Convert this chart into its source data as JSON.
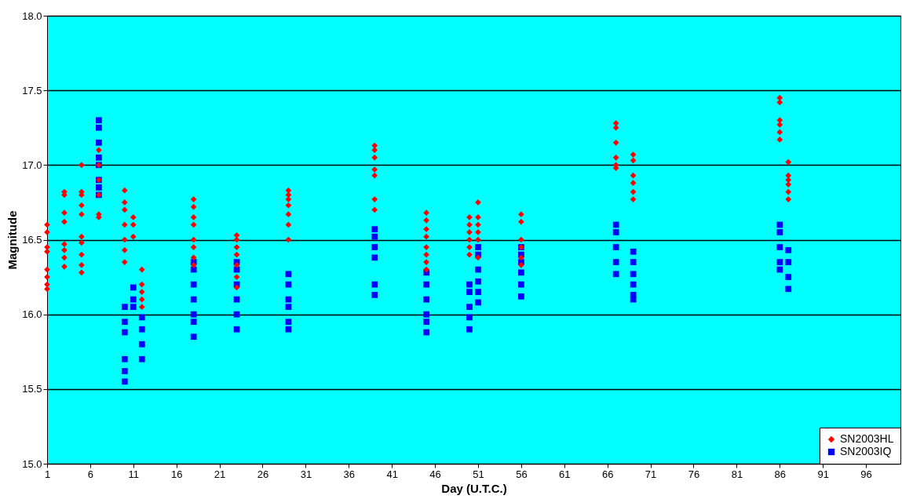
{
  "chart_data": {
    "type": "scatter",
    "xlabel": "Day (U.T.C.)",
    "ylabel": "Magnitude",
    "xlim": [
      1,
      100
    ],
    "xticks": [
      1,
      6,
      11,
      16,
      21,
      26,
      31,
      36,
      41,
      46,
      51,
      56,
      61,
      66,
      71,
      76,
      81,
      86,
      91,
      96
    ],
    "ylim": [
      15,
      18
    ],
    "yticks": [
      {
        "value": 15,
        "label": "15.0"
      },
      {
        "value": 15.5,
        "label": "15.5"
      },
      {
        "value": 16,
        "label": "16.0"
      },
      {
        "value": 16.5,
        "label": "16.5"
      },
      {
        "value": 17,
        "label": "17.0"
      },
      {
        "value": 17.5,
        "label": "17.5"
      },
      {
        "value": 18,
        "label": "18.0"
      }
    ],
    "grid": "y",
    "legend": "bottom right",
    "series": [
      {
        "name": "SN2003HL",
        "color": "#ff0000",
        "marker": "diamond",
        "x": [
          1,
          1,
          1,
          1,
          1,
          1,
          1,
          1,
          3,
          3,
          3,
          3,
          3,
          3,
          3,
          3,
          5,
          5,
          5,
          5,
          5,
          5,
          5,
          5,
          5,
          5,
          7,
          7,
          7,
          7,
          7,
          7,
          10,
          10,
          10,
          10,
          10,
          10,
          10,
          11,
          11,
          11,
          12,
          12,
          12,
          12,
          12,
          18,
          18,
          18,
          18,
          18,
          18,
          18,
          18,
          23,
          23,
          23,
          23,
          23,
          23,
          23,
          29,
          29,
          29,
          29,
          29,
          29,
          29,
          39,
          39,
          39,
          39,
          39,
          39,
          39,
          45,
          45,
          45,
          45,
          45,
          45,
          45,
          45,
          50,
          50,
          50,
          50,
          50,
          50,
          51,
          51,
          51,
          51,
          51,
          51,
          56,
          56,
          56,
          56,
          56,
          56,
          67,
          67,
          67,
          67,
          67,
          67,
          69,
          69,
          69,
          69,
          69,
          69,
          86,
          86,
          86,
          86,
          86,
          86,
          87,
          87,
          87,
          87,
          87,
          87
        ],
        "values": [
          16.6,
          16.55,
          16.45,
          16.42,
          16.3,
          16.25,
          16.2,
          16.17,
          16.82,
          16.8,
          16.68,
          16.62,
          16.47,
          16.43,
          16.38,
          16.32,
          17.0,
          16.82,
          16.8,
          16.73,
          16.67,
          16.52,
          16.48,
          16.4,
          16.33,
          16.28,
          17.1,
          17.0,
          16.9,
          16.8,
          16.67,
          16.65,
          16.83,
          16.75,
          16.7,
          16.6,
          16.5,
          16.43,
          16.35,
          16.65,
          16.6,
          16.52,
          16.3,
          16.2,
          16.15,
          16.1,
          16.05,
          16.77,
          16.72,
          16.65,
          16.6,
          16.5,
          16.45,
          16.38,
          16.33,
          16.53,
          16.5,
          16.45,
          16.4,
          16.33,
          16.25,
          16.18,
          16.83,
          16.8,
          16.77,
          16.73,
          16.67,
          16.6,
          16.5,
          17.13,
          17.1,
          17.05,
          16.97,
          16.93,
          16.77,
          16.7,
          16.68,
          16.63,
          16.57,
          16.52,
          16.45,
          16.4,
          16.35,
          16.3,
          16.65,
          16.6,
          16.55,
          16.5,
          16.45,
          16.4,
          16.75,
          16.65,
          16.6,
          16.55,
          16.5,
          16.38,
          16.67,
          16.62,
          16.5,
          16.45,
          16.38,
          16.33,
          17.28,
          17.25,
          17.15,
          17.05,
          17.0,
          16.98,
          17.07,
          17.03,
          16.93,
          16.88,
          16.82,
          16.77,
          17.45,
          17.42,
          17.3,
          17.27,
          17.22,
          17.17,
          17.02,
          16.93,
          16.9,
          16.87,
          16.82,
          16.77
        ]
      },
      {
        "name": "SN2003IQ",
        "color": "#0000ff",
        "marker": "square",
        "x": [
          7,
          7,
          7,
          7,
          7,
          7,
          7,
          7,
          10,
          10,
          10,
          10,
          10,
          10,
          11,
          11,
          11,
          12,
          12,
          12,
          12,
          18,
          18,
          18,
          18,
          18,
          18,
          18,
          23,
          23,
          23,
          23,
          23,
          23,
          29,
          29,
          29,
          29,
          29,
          29,
          39,
          39,
          39,
          39,
          39,
          39,
          45,
          45,
          45,
          45,
          45,
          45,
          50,
          50,
          50,
          50,
          50,
          51,
          51,
          51,
          51,
          51,
          51,
          56,
          56,
          56,
          56,
          56,
          56,
          67,
          67,
          67,
          67,
          67,
          69,
          69,
          69,
          69,
          69,
          69,
          86,
          86,
          86,
          86,
          86,
          87,
          87,
          87,
          87
        ],
        "values": [
          17.3,
          17.25,
          17.15,
          17.05,
          17.0,
          16.9,
          16.85,
          16.8,
          16.05,
          15.95,
          15.88,
          15.7,
          15.62,
          15.55,
          16.18,
          16.1,
          16.05,
          15.98,
          15.9,
          15.8,
          15.7,
          16.35,
          16.3,
          16.2,
          16.1,
          16.0,
          15.95,
          15.85,
          16.35,
          16.3,
          16.2,
          16.1,
          16.0,
          15.9,
          16.27,
          16.2,
          16.1,
          16.05,
          15.95,
          15.9,
          16.57,
          16.52,
          16.45,
          16.38,
          16.2,
          16.13,
          16.28,
          16.2,
          16.1,
          16.0,
          15.95,
          15.88,
          16.2,
          16.15,
          16.05,
          15.98,
          15.9,
          16.45,
          16.4,
          16.3,
          16.22,
          16.15,
          16.08,
          16.45,
          16.4,
          16.35,
          16.28,
          16.2,
          16.12,
          16.6,
          16.55,
          16.45,
          16.35,
          16.27,
          16.42,
          16.35,
          16.27,
          16.2,
          16.13,
          16.1,
          16.6,
          16.55,
          16.45,
          16.35,
          16.3,
          16.43,
          16.35,
          16.25,
          16.17
        ]
      }
    ]
  }
}
